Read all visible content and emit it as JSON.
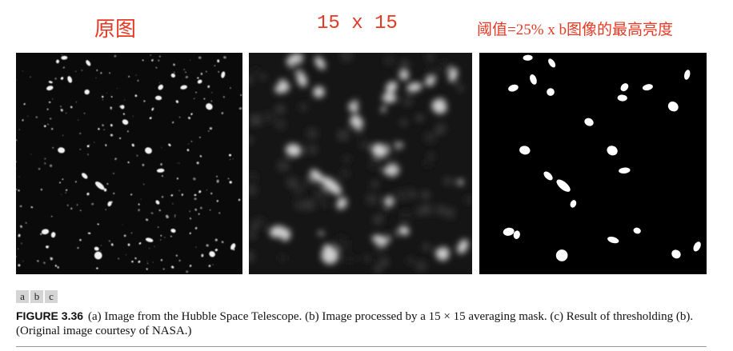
{
  "headings": {
    "original": "原图",
    "filter": "15 x 15",
    "threshold": "阈值=25% x b图像的最高亮度"
  },
  "subfigure_labels": [
    "a",
    "b",
    "c"
  ],
  "caption": {
    "figure_number": "FIGURE 3.36",
    "text": "(a) Image from the Hubble Space Telescope. (b) Image processed by a 15 × 15 averaging mask. (c) Result of thresholding (b). (Original image courtesy of NASA.)"
  },
  "colors": {
    "heading": "#e53923",
    "panel_background": "#000000"
  }
}
